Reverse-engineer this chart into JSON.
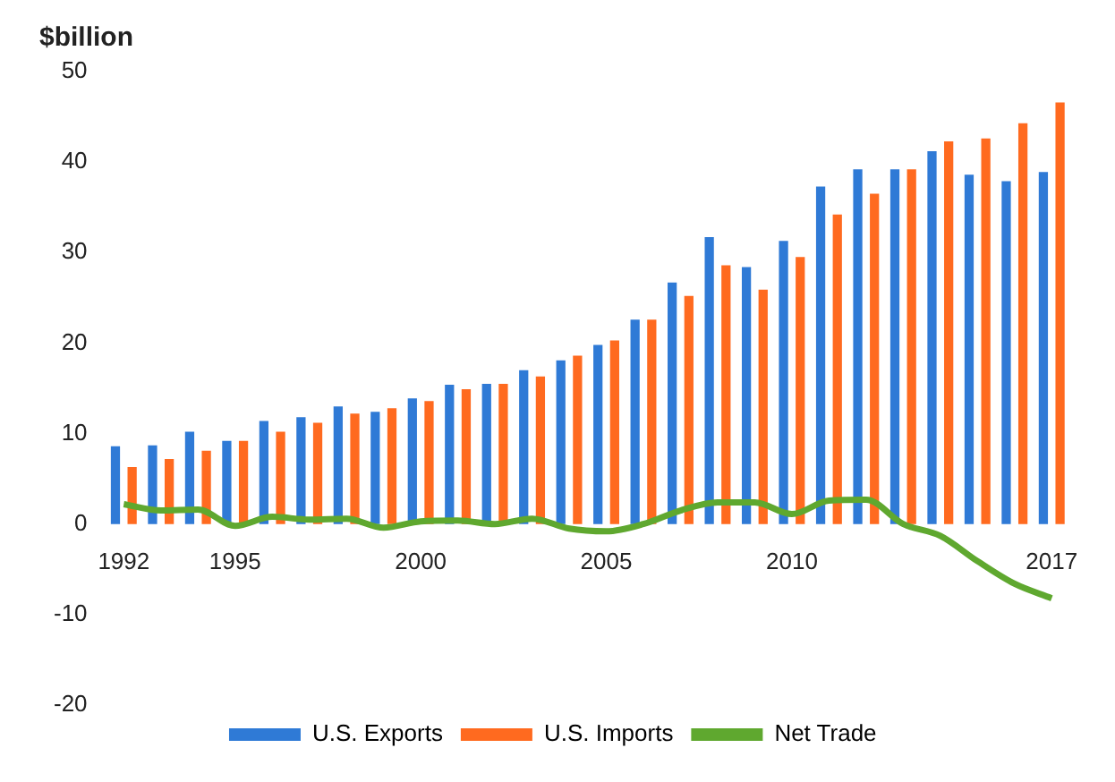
{
  "chart_data": {
    "type": "bar",
    "ylabel": "$billion",
    "categories": [
      "1992",
      null,
      null,
      "1995",
      null,
      null,
      null,
      null,
      "2000",
      null,
      null,
      null,
      null,
      "2005",
      null,
      null,
      null,
      null,
      "2010",
      null,
      null,
      null,
      null,
      null,
      null,
      "2017"
    ],
    "series": [
      {
        "name": "U.S. Exports",
        "color": "#2f7ad6",
        "values": [
          8.6,
          8.7,
          10.2,
          9.2,
          11.4,
          11.8,
          13,
          12.4,
          13.9,
          15.4,
          15.5,
          17,
          18.1,
          19.8,
          22.6,
          26.7,
          31.7,
          28.4,
          31.3,
          37.3,
          39.2,
          39.2,
          41.2,
          38.6,
          37.9,
          38.9
        ]
      },
      {
        "name": "U.S. Imports",
        "color": "#ff6a1f",
        "values": [
          6.3,
          7.2,
          8.1,
          9.2,
          10.2,
          11.2,
          12.2,
          12.8,
          13.6,
          14.9,
          15.5,
          16.3,
          18.6,
          20.3,
          22.6,
          25.2,
          28.6,
          25.9,
          29.5,
          34.2,
          36.5,
          39.2,
          42.3,
          42.6,
          44.3,
          46.6
        ]
      },
      {
        "name": "Net Trade",
        "type": "line",
        "color": "#5fa82f",
        "values": [
          2.2,
          1.5,
          1.6,
          -0.2,
          0.8,
          0.5,
          0.6,
          -0.4,
          0.3,
          0.4,
          0,
          0.6,
          -0.5,
          -0.8,
          0,
          1.5,
          2.4,
          2.4,
          1.1,
          2.6,
          2.7,
          0,
          -1.3,
          -4.1,
          -6.6,
          -8.2
        ]
      }
    ],
    "ylim": [
      -20,
      50
    ],
    "yticks": [
      -20,
      -10,
      0,
      10,
      20,
      30,
      40,
      50
    ],
    "grid": false,
    "legend": "bottom",
    "marker": "none",
    "line_style": "solid"
  }
}
